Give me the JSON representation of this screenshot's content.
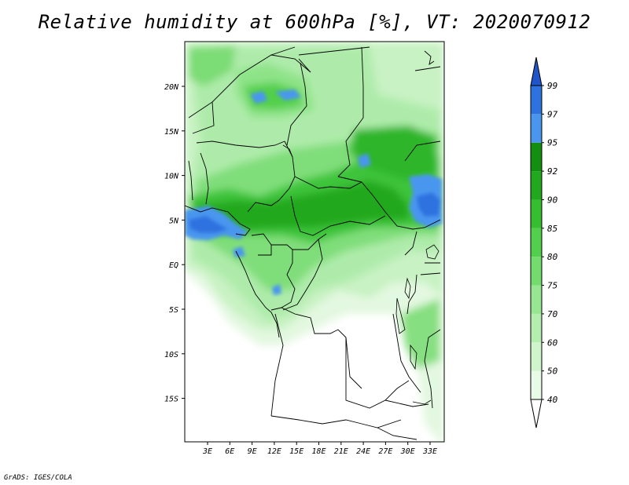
{
  "title": "Relative humidity at 600hPa [%], VT: 2020070912",
  "credit": "GrADS: IGES/COLA",
  "map": {
    "lat_labels": [
      "20N",
      "15N",
      "10N",
      "5N",
      "EQ",
      "5S",
      "10S",
      "15S"
    ],
    "lon_labels": [
      "3E",
      "6E",
      "9E",
      "12E",
      "15E",
      "18E",
      "21E",
      "24E",
      "27E",
      "30E",
      "33E"
    ]
  },
  "colorbar": {
    "labels": [
      "40",
      "50",
      "60",
      "70",
      "75",
      "80",
      "85",
      "90",
      "92",
      "95",
      "97",
      "99"
    ],
    "colors": [
      "#ffffff",
      "#e8fbe6",
      "#d0f5cc",
      "#b4eeaf",
      "#97e692",
      "#74dc6e",
      "#52cf4c",
      "#34be30",
      "#22a81e",
      "#128e10",
      "#4a96ef",
      "#2e72e0",
      "#1f55c8"
    ]
  }
}
